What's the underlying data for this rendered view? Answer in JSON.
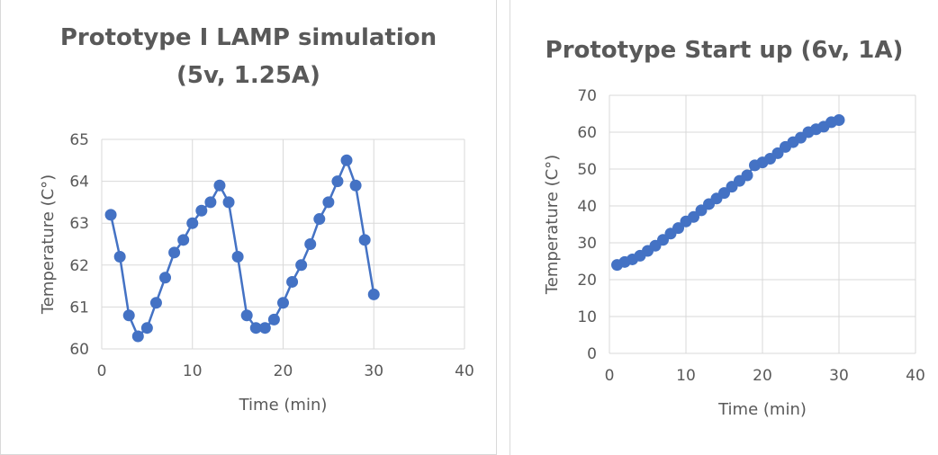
{
  "chart_data": [
    {
      "type": "line",
      "title_lines": [
        "Prototype I LAMP simulation",
        "(5v, 1.25A)"
      ],
      "xlabel": "Time (min)",
      "ylabel": "Temperature (C°)",
      "xlim": [
        0,
        40
      ],
      "ylim": [
        60,
        65
      ],
      "xticks": [
        "0",
        "10",
        "20",
        "30",
        "40"
      ],
      "yticks": [
        "60",
        "61",
        "62",
        "63",
        "64",
        "65"
      ],
      "grid": true,
      "color": "#4472c4",
      "series": [
        {
          "x": [
            1,
            2,
            3,
            4,
            5,
            6,
            7,
            8,
            9,
            10,
            11,
            12,
            13,
            14,
            15,
            16,
            17,
            18,
            19,
            20,
            21,
            22,
            23,
            24,
            25,
            26,
            27,
            28,
            29,
            30
          ],
          "y": [
            63.2,
            62.2,
            60.8,
            60.3,
            60.5,
            61.1,
            61.7,
            62.3,
            62.6,
            63.0,
            63.3,
            63.5,
            63.9,
            63.5,
            62.2,
            60.8,
            60.5,
            60.5,
            60.7,
            61.1,
            61.6,
            62.0,
            62.5,
            63.1,
            63.5,
            64.0,
            64.5,
            63.9,
            62.6,
            61.3
          ]
        }
      ]
    },
    {
      "type": "line",
      "title_lines": [
        "Prototype Start up (6v, 1A)"
      ],
      "xlabel": "Time (min)",
      "ylabel": "Temperature (C°)",
      "xlim": [
        0,
        40
      ],
      "ylim": [
        0,
        70
      ],
      "xticks": [
        "0",
        "10",
        "20",
        "30",
        "40"
      ],
      "yticks": [
        "0",
        "10",
        "20",
        "30",
        "40",
        "50",
        "60",
        "70"
      ],
      "grid": true,
      "color": "#4472c4",
      "series": [
        {
          "x": [
            1,
            2,
            3,
            4,
            5,
            6,
            7,
            8,
            9,
            10,
            11,
            12,
            13,
            14,
            15,
            16,
            17,
            18,
            19,
            20,
            21,
            22,
            23,
            24,
            25,
            26,
            27,
            28,
            29,
            30
          ],
          "y": [
            24,
            24.8,
            25.5,
            26.5,
            27.8,
            29.2,
            30.8,
            32.5,
            34,
            35.8,
            37,
            38.8,
            40.5,
            42,
            43.5,
            45.2,
            46.8,
            48.3,
            51,
            51.8,
            52.8,
            54.3,
            56,
            57.3,
            58.5,
            60,
            60.8,
            61.5,
            62.7,
            63.3
          ]
        }
      ]
    }
  ]
}
